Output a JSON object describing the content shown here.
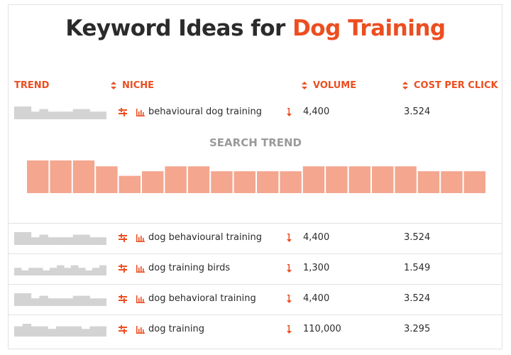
{
  "title": {
    "prefix": "Keyword Ideas for ",
    "highlight": "Dog Training"
  },
  "columns": {
    "trend": "TREND",
    "niche": "NICHE",
    "volume": "VOLUME",
    "cpc": "COST PER CLICK"
  },
  "colors": {
    "accent": "#ec4e20",
    "spark": "#d3d3d3",
    "trend_bar": "#f4a68f",
    "text": "#2b2b2b"
  },
  "icons": {
    "sort": "sort-arrows-icon",
    "filter": "filter-icon",
    "bars": "bar-chart-icon",
    "down_arrow": "down-arrow-icon"
  },
  "rows": [
    {
      "niche": "behavioural dog training",
      "volume": "4,400",
      "cpc": "3.524",
      "spark": [
        5,
        5,
        3,
        4,
        3,
        3,
        3,
        4,
        4,
        3,
        3
      ]
    },
    {
      "niche": "dog behavioural training",
      "volume": "4,400",
      "cpc": "3.524",
      "spark": [
        5,
        5,
        3,
        4,
        3,
        3,
        3,
        4,
        4,
        3,
        3
      ]
    },
    {
      "niche": "dog training birds",
      "volume": "1,300",
      "cpc": "1.549",
      "spark": [
        3,
        2,
        3,
        3,
        2,
        3,
        4,
        3,
        4,
        3,
        2,
        3,
        4
      ]
    },
    {
      "niche": "dog behavioral training",
      "volume": "4,400",
      "cpc": "3.524",
      "spark": [
        5,
        5,
        3,
        4,
        3,
        3,
        3,
        4,
        4,
        3,
        3
      ]
    },
    {
      "niche": "dog training",
      "volume": "110,000",
      "cpc": "3.295",
      "spark": [
        4,
        5,
        4,
        4,
        3,
        4,
        4,
        4,
        3,
        4,
        4
      ]
    }
  ],
  "search_trend": {
    "label": "SEARCH TREND",
    "values": [
      100,
      100,
      100,
      82,
      53,
      67,
      82,
      82,
      67,
      67,
      67,
      67,
      82,
      82,
      82,
      82,
      82,
      67,
      67,
      67
    ]
  }
}
